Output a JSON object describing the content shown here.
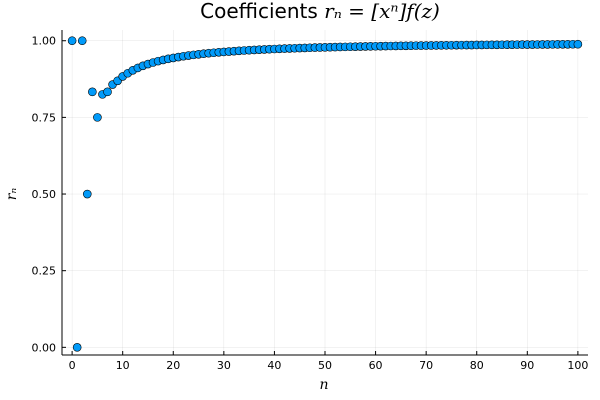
{
  "chart_data": {
    "type": "scatter",
    "title": "Coefficients r_n = [x^n]f(z)",
    "title_parts": {
      "prefix": "Coefficients ",
      "math": "rₙ = [xⁿ]f(z)"
    },
    "xlabel": "n",
    "ylabel": "rₙ",
    "xlim": [
      -2,
      102
    ],
    "ylim": [
      -0.025,
      1.035
    ],
    "xticks": [
      0,
      10,
      20,
      30,
      40,
      50,
      60,
      70,
      80,
      90,
      100
    ],
    "xtick_labels": [
      "0",
      "10",
      "20",
      "30",
      "40",
      "50",
      "60",
      "70",
      "80",
      "90",
      "100"
    ],
    "yticks": [
      0.0,
      0.25,
      0.5,
      0.75,
      1.0
    ],
    "ytick_labels": [
      "0.00",
      "0.25",
      "0.50",
      "0.75",
      "1.00"
    ],
    "grid": true,
    "legend": "none",
    "marker_color": "#009AF9",
    "marker_edge_color": "#000000",
    "series": [
      {
        "name": "r_n",
        "x": [
          0,
          1,
          2,
          3,
          4,
          5,
          6,
          7,
          8,
          9,
          10,
          11,
          12,
          13,
          14,
          15,
          16,
          17,
          18,
          19,
          20,
          21,
          22,
          23,
          24,
          25,
          26,
          27,
          28,
          29,
          30,
          31,
          32,
          33,
          34,
          35,
          36,
          37,
          38,
          39,
          40,
          41,
          42,
          43,
          44,
          45,
          46,
          47,
          48,
          49,
          50,
          51,
          52,
          53,
          54,
          55,
          56,
          57,
          58,
          59,
          60,
          61,
          62,
          63,
          64,
          65,
          66,
          67,
          68,
          69,
          70,
          71,
          72,
          73,
          74,
          75,
          76,
          77,
          78,
          79,
          80,
          81,
          82,
          83,
          84,
          85,
          86,
          87,
          88,
          89,
          90,
          91,
          92,
          93,
          94,
          95,
          96,
          97,
          98,
          99,
          100
        ],
        "y": [
          1.0,
          0.0,
          1.0,
          0.5,
          0.8333,
          0.75,
          0.825,
          0.8333,
          0.8571,
          0.8694,
          0.8836,
          0.8939,
          0.9036,
          0.9114,
          0.9182,
          0.924,
          0.929,
          0.9335,
          0.9374,
          0.9409,
          0.944,
          0.9468,
          0.9494,
          0.9517,
          0.9539,
          0.9558,
          0.9576,
          0.9593,
          0.9608,
          0.9623,
          0.9636,
          0.9648,
          0.966,
          0.9671,
          0.9681,
          0.969,
          0.9699,
          0.9708,
          0.9716,
          0.9723,
          0.973,
          0.9737,
          0.9743,
          0.9749,
          0.9755,
          0.9761,
          0.9766,
          0.9771,
          0.9776,
          0.978,
          0.9785,
          0.9789,
          0.9793,
          0.9797,
          0.98,
          0.9804,
          0.9807,
          0.9811,
          0.9814,
          0.9817,
          0.982,
          0.9822,
          0.9825,
          0.9828,
          0.983,
          0.9833,
          0.9835,
          0.9837,
          0.984,
          0.9842,
          0.9844,
          0.9846,
          0.9848,
          0.985,
          0.9852,
          0.9853,
          0.9855,
          0.9857,
          0.9858,
          0.986,
          0.9862,
          0.9863,
          0.9865,
          0.9866,
          0.9867,
          0.9869,
          0.987,
          0.9871,
          0.9873,
          0.9874,
          0.9875,
          0.9876,
          0.9877,
          0.9878,
          0.988,
          0.9881,
          0.9882,
          0.9883,
          0.9884,
          0.9885,
          0.9886
        ]
      }
    ]
  }
}
